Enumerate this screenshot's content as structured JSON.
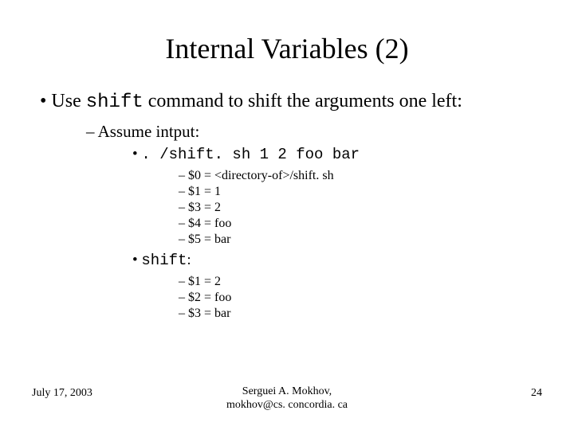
{
  "title": "Internal Variables (2)",
  "bullet1_pre": "Use ",
  "bullet1_cmd": "shift",
  "bullet1_post": " command to shift the arguments one left:",
  "assume": "Assume intput:",
  "invoke": ". /shift. sh 1 2 foo bar",
  "before": [
    "$0 = <directory-of>/shift. sh",
    "$1 = 1",
    "$3 = 2",
    "$4 = foo",
    "$5 = bar"
  ],
  "shift_label": "shift",
  "shift_colon": ":",
  "after": [
    "$1 = 2",
    "$2 = foo",
    "$3 = bar"
  ],
  "footer": {
    "date": "July 17, 2003",
    "author_line1": "Serguei A. Mokhov,",
    "author_line2": "mokhov@cs. concordia. ca",
    "page": "24"
  }
}
